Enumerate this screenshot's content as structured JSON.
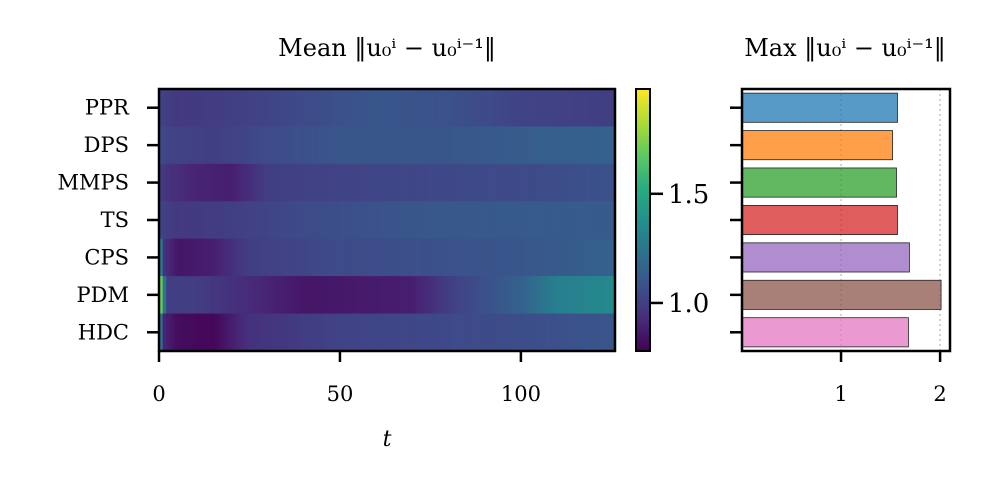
{
  "chart_data": [
    {
      "type": "heatmap",
      "title": "Mean ‖u₀ⁱ − u₀ⁱ⁻¹‖",
      "xlabel": "t",
      "ylabel": "",
      "categories": [
        "PPR",
        "DPS",
        "MMPS",
        "TS",
        "CPS",
        "PDM",
        "HDC"
      ],
      "x_ticks": [
        0,
        50,
        100
      ],
      "xlim": [
        0,
        126
      ],
      "colormap": "viridis",
      "colorbar": {
        "ticks": [
          1.0,
          1.5
        ],
        "tick_labels": [
          "1.0",
          "1.5"
        ],
        "vmin": 0.78,
        "vmax": 1.98
      },
      "series": [
        {
          "name": "PPR",
          "keypoints": [
            [
              0,
              1.02
            ],
            [
              5,
              0.98
            ],
            [
              20,
              1.0
            ],
            [
              40,
              1.05
            ],
            [
              60,
              1.1
            ],
            [
              80,
              1.08
            ],
            [
              100,
              1.02
            ],
            [
              126,
              1.0
            ]
          ]
        },
        {
          "name": "DPS",
          "keypoints": [
            [
              0,
              1.05
            ],
            [
              3,
              1.02
            ],
            [
              15,
              1.0
            ],
            [
              30,
              1.05
            ],
            [
              50,
              1.1
            ],
            [
              80,
              1.1
            ],
            [
              100,
              1.13
            ],
            [
              126,
              1.15
            ]
          ]
        },
        {
          "name": "MMPS",
          "keypoints": [
            [
              0,
              1.0
            ],
            [
              3,
              0.95
            ],
            [
              10,
              0.9
            ],
            [
              20,
              0.88
            ],
            [
              30,
              1.0
            ],
            [
              60,
              1.03
            ],
            [
              100,
              1.05
            ],
            [
              126,
              1.08
            ]
          ]
        },
        {
          "name": "TS",
          "keypoints": [
            [
              0,
              1.02
            ],
            [
              5,
              0.98
            ],
            [
              20,
              1.0
            ],
            [
              40,
              1.05
            ],
            [
              70,
              1.1
            ],
            [
              100,
              1.12
            ],
            [
              126,
              1.12
            ]
          ]
        },
        {
          "name": "CPS",
          "keypoints": [
            [
              0,
              1.45
            ],
            [
              1.5,
              0.95
            ],
            [
              5,
              0.85
            ],
            [
              15,
              0.88
            ],
            [
              25,
              1.0
            ],
            [
              50,
              1.05
            ],
            [
              100,
              1.1
            ],
            [
              126,
              1.15
            ]
          ]
        },
        {
          "name": "PDM",
          "keypoints": [
            [
              0,
              1.95
            ],
            [
              2,
              1.0
            ],
            [
              10,
              1.0
            ],
            [
              20,
              0.95
            ],
            [
              40,
              0.85
            ],
            [
              70,
              0.88
            ],
            [
              80,
              1.0
            ],
            [
              100,
              1.15
            ],
            [
              110,
              1.3
            ],
            [
              126,
              1.35
            ]
          ]
        },
        {
          "name": "HDC",
          "keypoints": [
            [
              0,
              1.4
            ],
            [
              1.5,
              0.9
            ],
            [
              5,
              0.82
            ],
            [
              15,
              0.8
            ],
            [
              25,
              0.95
            ],
            [
              50,
              1.02
            ],
            [
              100,
              1.06
            ],
            [
              126,
              1.1
            ]
          ]
        }
      ]
    },
    {
      "type": "bar",
      "orientation": "horizontal",
      "title": "Max ‖u₀ⁱ − u₀ⁱ⁻¹‖",
      "xlabel": "",
      "ylabel": "",
      "categories": [
        "PPR",
        "DPS",
        "MMPS",
        "TS",
        "CPS",
        "PDM",
        "HDC"
      ],
      "values": [
        1.57,
        1.52,
        1.56,
        1.57,
        1.69,
        2.01,
        1.68
      ],
      "colors": [
        "#1f77b4",
        "#ff7f0e",
        "#2ca02c",
        "#d62728",
        "#9467bd",
        "#8c564b",
        "#e377c2"
      ],
      "x_ticks": [
        1,
        2
      ],
      "xlim": [
        0,
        2.1
      ],
      "grid": "x dotted"
    }
  ]
}
